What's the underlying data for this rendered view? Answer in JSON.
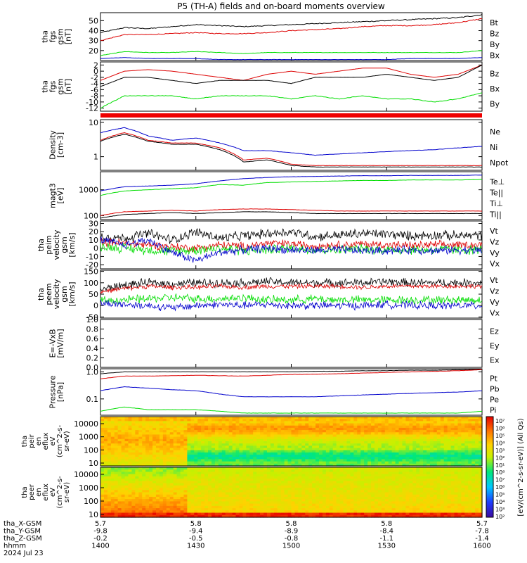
{
  "title": "P5 (TH-A) fields and on-board moments overview",
  "colors": {
    "black": "#000000",
    "red": "#dd0000",
    "green": "#00dd00",
    "blue": "#0000cc"
  },
  "panels": [
    {
      "id": "fgs-bt",
      "ylabel": [
        "tha",
        "fgs",
        "gsm",
        "[nT]"
      ],
      "ylim": [
        10,
        58
      ],
      "yticks": [
        20,
        30,
        40,
        50
      ],
      "log": false,
      "legend": [
        {
          "name": "Bt",
          "color": "black"
        },
        {
          "name": "Bz",
          "color": "red"
        },
        {
          "name": "By",
          "color": "green"
        },
        {
          "name": "Bx",
          "color": "blue"
        }
      ],
      "series": [
        {
          "name": "Bt",
          "color": "black",
          "kind": "smooth",
          "values": [
            38,
            43,
            42,
            44,
            46,
            45,
            44,
            45,
            46,
            47,
            48,
            49,
            50,
            51,
            52,
            53,
            56
          ]
        },
        {
          "name": "Bz",
          "color": "red",
          "kind": "smooth",
          "values": [
            30,
            36,
            36,
            37,
            38,
            37,
            37,
            38,
            40,
            41,
            42,
            44,
            45,
            45,
            46,
            48,
            52
          ]
        },
        {
          "name": "By",
          "color": "green",
          "kind": "smooth",
          "values": [
            15,
            19,
            18,
            18,
            19,
            18,
            17,
            18,
            18,
            18,
            18,
            18,
            18,
            18,
            18,
            18,
            20
          ]
        },
        {
          "name": "Bx",
          "color": "blue",
          "kind": "smooth",
          "values": [
            12,
            13,
            12,
            12,
            12,
            11,
            11,
            11,
            11,
            11,
            11,
            11,
            11,
            12,
            12,
            12,
            13
          ]
        }
      ]
    },
    {
      "id": "fgs-comp",
      "ylabel": [
        "tha",
        "fgs",
        "gsm",
        "[nT]"
      ],
      "ylim": [
        -13,
        3
      ],
      "yticks": [
        -12,
        -10,
        -8,
        -6,
        -4,
        -2,
        0,
        2
      ],
      "log": false,
      "legend": [
        {
          "name": "Bz",
          "color": "red"
        },
        {
          "name": "Bx",
          "color": "black"
        },
        {
          "name": "By",
          "color": "green"
        }
      ],
      "series": [
        {
          "name": "Bz",
          "color": "red",
          "kind": "smooth",
          "values": [
            -3,
            0,
            0.5,
            0,
            -1,
            -2,
            -3,
            -1,
            0,
            -1,
            0,
            1,
            1,
            -1,
            -2,
            -1,
            2
          ]
        },
        {
          "name": "Bx",
          "color": "black",
          "kind": "smooth",
          "values": [
            -5,
            -2,
            -2,
            -3,
            -4,
            -3,
            -3,
            -3,
            -4,
            -2,
            -2,
            -2,
            -1,
            -2,
            -3,
            -2,
            2
          ]
        },
        {
          "name": "By",
          "color": "green",
          "kind": "smooth",
          "values": [
            -12,
            -8,
            -8,
            -8,
            -9,
            -8,
            -8,
            -8,
            -9,
            -8,
            -9,
            -8,
            -9,
            -9,
            -10,
            -9,
            -7
          ]
        }
      ]
    },
    {
      "id": "density",
      "ylabel": [
        "Density",
        "[cm-3]"
      ],
      "ylim": [
        0.4,
        12
      ],
      "yticks": [
        1,
        10
      ],
      "log": true,
      "legend": [
        {
          "name": "Ne",
          "color": "red"
        },
        {
          "name": "Ni",
          "color": "black"
        },
        {
          "name": "Npot",
          "color": "blue"
        }
      ],
      "series": [
        {
          "name": "Npot",
          "color": "blue",
          "kind": "smooth",
          "values": [
            5,
            7,
            4,
            3,
            3.5,
            2.5,
            1.5,
            1.5,
            1.3,
            1.1,
            1.2,
            1.3,
            1.4,
            1.5,
            1.6,
            1.8,
            2
          ]
        },
        {
          "name": "Ne",
          "color": "red",
          "kind": "smooth",
          "values": [
            3,
            5,
            3,
            2.5,
            2.5,
            1.8,
            0.8,
            0.9,
            0.6,
            0.55,
            0.55,
            0.55,
            0.55,
            0.55,
            0.55,
            0.55,
            0.55
          ]
        },
        {
          "name": "Ni",
          "color": "black",
          "kind": "smooth",
          "values": [
            2.8,
            4.5,
            2.8,
            2.3,
            2.3,
            1.6,
            0.7,
            0.8,
            0.55,
            0.5,
            0.5,
            0.5,
            0.5,
            0.5,
            0.5,
            0.5,
            0.5
          ]
        }
      ]
    },
    {
      "id": "temperature",
      "ylabel": [
        "magt3",
        "[eV]"
      ],
      "ylim": [
        70,
        5000
      ],
      "yticks": [
        100,
        1000
      ],
      "log": true,
      "legend": [
        {
          "name": "Te⊥",
          "color": "red"
        },
        {
          "name": "Te||",
          "color": "black"
        },
        {
          "name": "Ti⊥",
          "color": "blue"
        },
        {
          "name": "Ti||",
          "color": "green"
        }
      ],
      "series": [
        {
          "name": "Ti⊥",
          "color": "blue",
          "kind": "smooth",
          "values": [
            900,
            1300,
            1400,
            1500,
            1700,
            2200,
            2700,
            3000,
            3200,
            3300,
            3400,
            3500,
            3500,
            3600,
            3600,
            3600,
            3700
          ]
        },
        {
          "name": "Ti||",
          "color": "green",
          "kind": "smooth",
          "values": [
            600,
            900,
            1000,
            1100,
            1200,
            1600,
            1500,
            1900,
            2000,
            2100,
            2200,
            2300,
            2300,
            2400,
            2400,
            2400,
            2500
          ]
        },
        {
          "name": "Te⊥",
          "color": "red",
          "kind": "smooth",
          "values": [
            100,
            140,
            150,
            160,
            150,
            170,
            180,
            180,
            170,
            160,
            150,
            150,
            150,
            150,
            150,
            150,
            150
          ]
        },
        {
          "name": "Te||",
          "color": "black",
          "kind": "smooth",
          "values": [
            80,
            110,
            120,
            130,
            120,
            130,
            140,
            140,
            130,
            120,
            120,
            120,
            120,
            120,
            120,
            120,
            120
          ]
        }
      ]
    },
    {
      "id": "peim-velocity",
      "ylabel": [
        "tha",
        "peim",
        "velocity",
        "gsm",
        "[km/s]"
      ],
      "ylim": [
        -25,
        33
      ],
      "yticks": [
        -20,
        -10,
        0,
        10,
        20,
        30
      ],
      "log": false,
      "legend": [
        {
          "name": "Vt",
          "color": "black"
        },
        {
          "name": "Vz",
          "color": "red"
        },
        {
          "name": "Vy",
          "color": "green"
        },
        {
          "name": "Vx",
          "color": "blue"
        }
      ],
      "series": [
        {
          "name": "Vt",
          "color": "black",
          "kind": "noisy",
          "values": [
            15,
            12,
            18,
            10,
            20,
            12,
            15,
            18,
            20,
            14,
            16,
            18,
            17,
            15,
            16,
            15,
            16
          ],
          "amp": 7
        },
        {
          "name": "Vz",
          "color": "red",
          "kind": "noisy",
          "values": [
            8,
            6,
            4,
            2,
            0,
            4,
            2,
            6,
            5,
            3,
            4,
            5,
            4,
            3,
            4,
            4,
            4
          ],
          "amp": 6
        },
        {
          "name": "Vy",
          "color": "green",
          "kind": "noisy",
          "values": [
            2,
            0,
            -2,
            -4,
            -2,
            0,
            -3,
            -2,
            0,
            -2,
            -2,
            -1,
            -2,
            -2,
            -2,
            -2,
            -2
          ],
          "amp": 7
        },
        {
          "name": "Vx",
          "color": "blue",
          "kind": "noisy",
          "values": [
            10,
            4,
            10,
            -5,
            -15,
            -5,
            -2,
            0,
            -2,
            -3,
            -2,
            -3,
            -3,
            -2,
            -3,
            -2,
            -3
          ],
          "amp": 6
        }
      ]
    },
    {
      "id": "peem-velocity",
      "ylabel": [
        "tha",
        "peem",
        "velocity",
        "gsm",
        "[km/s]"
      ],
      "ylim": [
        -55,
        155
      ],
      "yticks": [
        -50,
        0,
        50,
        100,
        150
      ],
      "log": false,
      "legend": [
        {
          "name": "Vt",
          "color": "black"
        },
        {
          "name": "Vz",
          "color": "red"
        },
        {
          "name": "Vy",
          "color": "green"
        },
        {
          "name": "Vx",
          "color": "blue"
        }
      ],
      "series": [
        {
          "name": "Vt",
          "color": "black",
          "kind": "noisy",
          "values": [
            70,
            90,
            100,
            95,
            100,
            100,
            100,
            105,
            100,
            100,
            100,
            100,
            105,
            100,
            100,
            100,
            100
          ],
          "amp": 22
        },
        {
          "name": "Vz",
          "color": "red",
          "kind": "noisy",
          "values": [
            60,
            75,
            85,
            80,
            80,
            85,
            80,
            85,
            85,
            85,
            85,
            80,
            85,
            85,
            85,
            85,
            85
          ],
          "amp": 12
        },
        {
          "name": "Vy",
          "color": "green",
          "kind": "noisy",
          "values": [
            20,
            25,
            30,
            35,
            30,
            30,
            35,
            25,
            25,
            30,
            25,
            25,
            25,
            25,
            25,
            25,
            25
          ],
          "amp": 22
        },
        {
          "name": "Vx",
          "color": "blue",
          "kind": "noisy",
          "values": [
            10,
            5,
            0,
            -10,
            0,
            5,
            0,
            5,
            0,
            0,
            0,
            0,
            5,
            0,
            0,
            0,
            0
          ],
          "amp": 20
        }
      ]
    },
    {
      "id": "efield",
      "ylabel": [
        "E=-VxB",
        "[mV/m]"
      ],
      "ylim": [
        0,
        1
      ],
      "yticks": [
        0,
        0.2,
        0.4,
        0.6,
        0.8,
        1.0
      ],
      "ytick_labels": [
        "0.0",
        "0.2",
        "0.4",
        "0.6",
        "0.8",
        "1.0"
      ],
      "log": false,
      "legend": [
        {
          "name": "Ez",
          "color": "red"
        },
        {
          "name": "Ey",
          "color": "green"
        },
        {
          "name": "Ex",
          "color": "blue"
        }
      ],
      "series": []
    },
    {
      "id": "pressure",
      "ylabel": [
        "Pressure",
        "[nPa]"
      ],
      "ylim": [
        0.025,
        1.3
      ],
      "yticks": [
        0.1,
        1.0
      ],
      "ytick_labels": [
        "0.1",
        "1.0"
      ],
      "log": true,
      "legend": [
        {
          "name": "Pt",
          "color": "black"
        },
        {
          "name": "Pb",
          "color": "red"
        },
        {
          "name": "Pe",
          "color": "green"
        },
        {
          "name": "Pi",
          "color": "blue"
        }
      ],
      "series": [
        {
          "name": "Pt",
          "color": "black",
          "kind": "smooth",
          "values": [
            0.85,
            1.0,
            1.0,
            1.0,
            1.0,
            1.0,
            1.0,
            1.0,
            1.0,
            1.05,
            1.05,
            1.1,
            1.1,
            1.15,
            1.15,
            1.2,
            1.25
          ]
        },
        {
          "name": "Pb",
          "color": "red",
          "kind": "smooth",
          "values": [
            0.55,
            0.7,
            0.7,
            0.72,
            0.75,
            0.72,
            0.7,
            0.75,
            0.8,
            0.82,
            0.85,
            0.9,
            0.95,
            1.0,
            1.05,
            1.1,
            1.2
          ]
        },
        {
          "name": "Pi",
          "color": "blue",
          "kind": "smooth",
          "values": [
            0.2,
            0.28,
            0.25,
            0.22,
            0.2,
            0.15,
            0.12,
            0.12,
            0.12,
            0.12,
            0.13,
            0.14,
            0.15,
            0.16,
            0.17,
            0.18,
            0.2
          ]
        },
        {
          "name": "Pe",
          "color": "green",
          "kind": "smooth",
          "values": [
            0.035,
            0.05,
            0.04,
            0.04,
            0.04,
            0.035,
            0.03,
            0.03,
            0.03,
            0.03,
            0.03,
            0.03,
            0.03,
            0.03,
            0.03,
            0.03,
            0.035
          ]
        }
      ]
    }
  ],
  "spectrograms": [
    {
      "id": "peir",
      "ylabel": [
        "tha",
        "peir",
        "en",
        "eflux",
        "eV",
        "(cm^2-s-",
        "sr-eV)"
      ],
      "yticks": [
        "10000",
        "1000",
        "100",
        "10"
      ],
      "kind": "ion"
    },
    {
      "id": "peer",
      "ylabel": [
        "tha",
        "peer",
        "en",
        "eflux",
        "eV",
        "(cm^2-s-",
        "sr-eV)"
      ],
      "yticks": [
        "10000",
        "1000",
        "100",
        "10"
      ],
      "kind": "electron"
    }
  ],
  "colorbar": {
    "label": "[eV/(cm^2-s-sr-eV)] (All Qs)",
    "ticks": [
      "10⁷",
      "10⁶",
      "10⁵",
      "10⁴",
      "10³",
      "10²",
      "10¹",
      "10⁸",
      "10⁷",
      "10⁶",
      "10⁵",
      "10⁴",
      "10³",
      "10²"
    ]
  },
  "x_axis": {
    "rows": [
      {
        "label": "tha_X-GSM",
        "values": [
          "5.7",
          "5.8",
          "5.8",
          "5.8",
          "5.7"
        ]
      },
      {
        "label": "tha_Y-GSM",
        "values": [
          "-9.8",
          "-9.4",
          "-8.9",
          "-8.4",
          "-7.8"
        ]
      },
      {
        "label": "tha_Z-GSM",
        "values": [
          "-0.2",
          "-0.5",
          "-0.8",
          "-1.1",
          "-1.4"
        ]
      },
      {
        "label": "hhmm",
        "values": [
          "1400",
          "1430",
          "1500",
          "1530",
          "1600"
        ]
      }
    ],
    "date": "2024 Jul 23"
  },
  "chart_data": {
    "type": "line",
    "title": "P5 (TH-A) fields and on-board moments overview",
    "x": [
      "1400",
      "1430",
      "1500",
      "1530",
      "1600"
    ],
    "xlabel": "hhmm",
    "date": "2024 Jul 23",
    "note_series": "Panel series values stored in panels[].series (17 samples between 1400 and 1600)"
  }
}
